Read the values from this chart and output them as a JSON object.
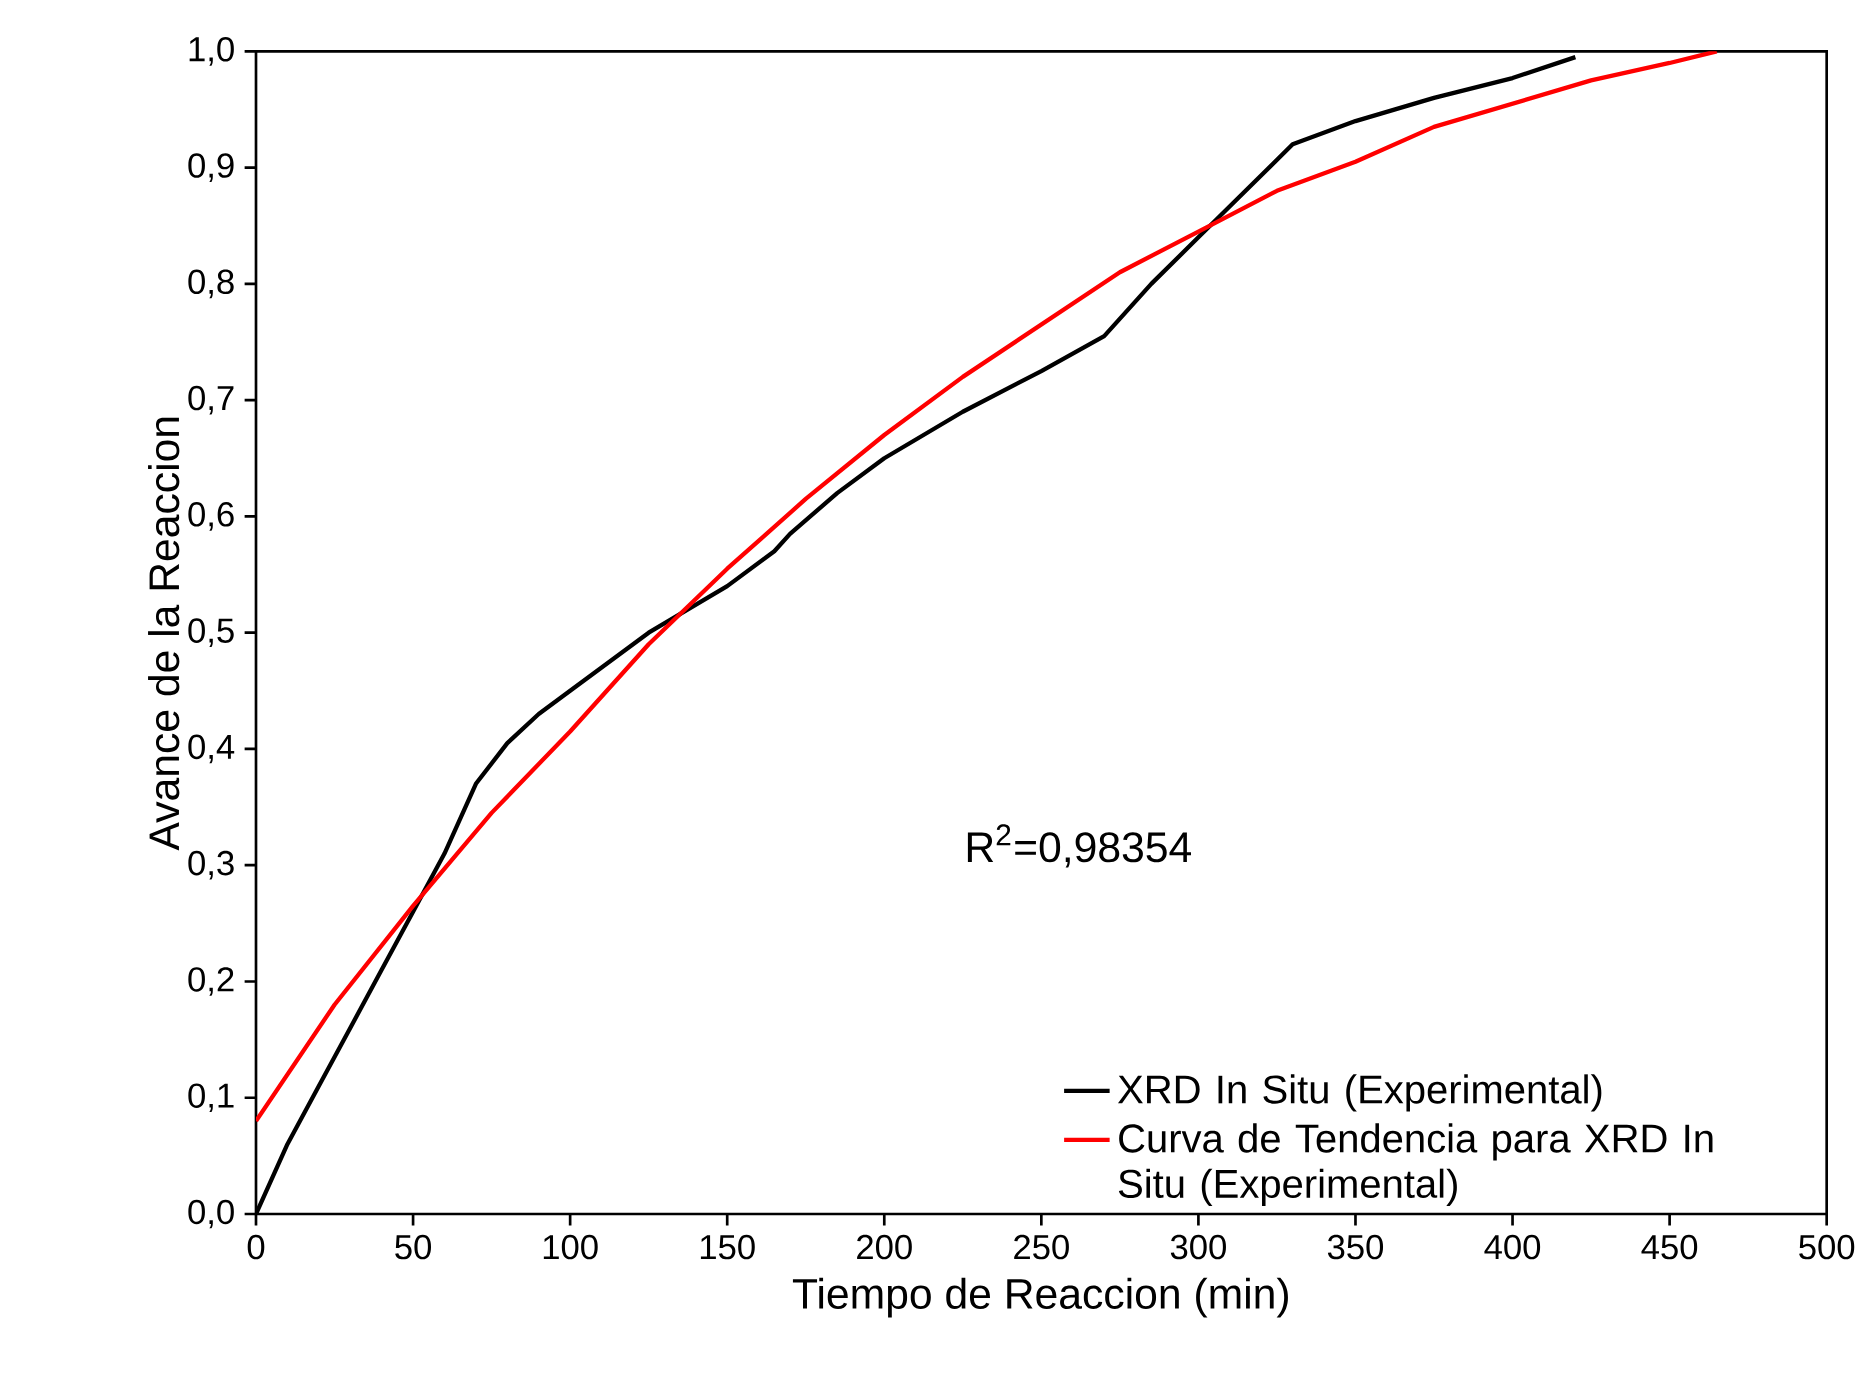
{
  "chart_data": {
    "type": "line",
    "xlabel": "Tiempo de Reaccion (min)",
    "ylabel": "Avance de la Reaccion",
    "annotations": [
      "R$^{2}$=0,98354"
    ],
    "series": [
      {
        "name": "XRD In Situ (Experimental)",
        "color": "#000000",
        "x": [
          0,
          10,
          20,
          30,
          40,
          50,
          60,
          65,
          70,
          80,
          90,
          100,
          125,
          150,
          165,
          170,
          185,
          200,
          225,
          250,
          270,
          285,
          300,
          315,
          330,
          350,
          375,
          400,
          420
        ],
        "values": [
          0,
          0.06,
          0.11,
          0.16,
          0.21,
          0.26,
          0.31,
          0.34,
          0.37,
          0.405,
          0.43,
          0.45,
          0.5,
          0.54,
          0.57,
          0.585,
          0.62,
          0.65,
          0.69,
          0.725,
          0.755,
          0.8,
          0.84,
          0.88,
          0.92,
          0.94,
          0.96,
          0.977,
          0.995
        ]
      },
      {
        "name": "Curva de Tendencia para XRD In Situ (Experimental)",
        "color": "#ff0000",
        "x": [
          0,
          25,
          50,
          75,
          100,
          125,
          150,
          175,
          200,
          225,
          250,
          275,
          300,
          325,
          350,
          375,
          400,
          425,
          450,
          465
        ],
        "values": [
          0.08,
          0.18,
          0.265,
          0.345,
          0.415,
          0.49,
          0.555,
          0.615,
          0.67,
          0.72,
          0.765,
          0.81,
          0.845,
          0.88,
          0.905,
          0.935,
          0.955,
          0.975,
          0.99,
          1.0
        ]
      }
    ],
    "xlim": [
      0,
      500
    ],
    "xticks": [
      0,
      50,
      100,
      150,
      200,
      250,
      300,
      350,
      400,
      450,
      500
    ],
    "ylim": [
      0,
      1
    ],
    "yticks": [
      {
        "value": 0,
        "label": "0,0"
      },
      {
        "value": 0.1,
        "label": "0,1"
      },
      {
        "value": 0.2,
        "label": "0,2"
      },
      {
        "value": 0.3,
        "label": "0,3"
      },
      {
        "value": 0.4,
        "label": "0,4"
      },
      {
        "value": 0.5,
        "label": "0,5"
      },
      {
        "value": 0.6,
        "label": "0,6"
      },
      {
        "value": 0.7,
        "label": "0,7"
      },
      {
        "value": 0.8,
        "label": "0,8"
      },
      {
        "value": 0.9,
        "label": "0,9"
      },
      {
        "value": 1,
        "label": "1,0"
      }
    ],
    "grid": false,
    "legend": "bottom right",
    "marker": "none",
    "line_style": "solid"
  }
}
